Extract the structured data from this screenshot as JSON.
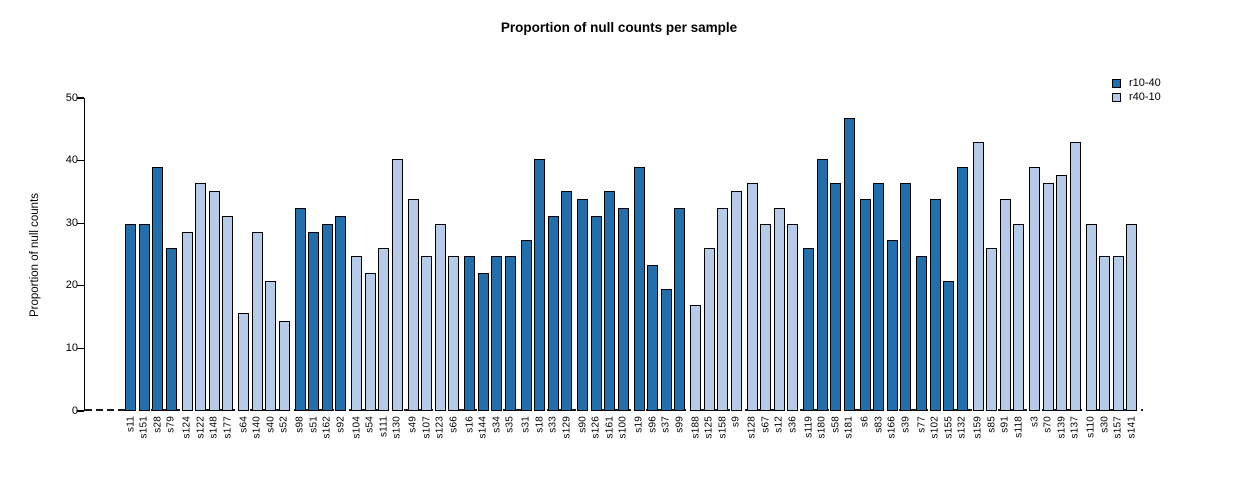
{
  "title": "Proportion of null counts per sample",
  "y_axis": {
    "label": "Proportion of null counts",
    "ticks": [
      0,
      10,
      20,
      30,
      40,
      50
    ]
  },
  "legend": {
    "items": [
      {
        "label": "r10-40",
        "color": "#216FAC"
      },
      {
        "label": "r40-10",
        "color": "#B5CBE8"
      }
    ]
  },
  "chart_data": {
    "type": "bar",
    "title": "Proportion of null counts per sample",
    "xlabel": "",
    "ylabel": "Proportion of null counts",
    "ylim": [
      0,
      50
    ],
    "yticks": [
      0,
      10,
      20,
      30,
      40,
      50
    ],
    "grid": false,
    "legend_position": "top-right",
    "zero_line": "dashed",
    "group_size": 4,
    "series": [
      {
        "name": "r10-40",
        "color": "#216FAC"
      },
      {
        "name": "r40-10",
        "color": "#B5CBE8"
      }
    ],
    "bars": [
      {
        "sample": "s11",
        "value": 29.9,
        "series": "r10-40"
      },
      {
        "sample": "s151",
        "value": 29.9,
        "series": "r10-40"
      },
      {
        "sample": "s28",
        "value": 39.0,
        "series": "r10-40"
      },
      {
        "sample": "s79",
        "value": 26.0,
        "series": "r10-40"
      },
      {
        "sample": "s124",
        "value": 28.6,
        "series": "r40-10"
      },
      {
        "sample": "s122",
        "value": 36.4,
        "series": "r40-10"
      },
      {
        "sample": "s148",
        "value": 35.1,
        "series": "r40-10"
      },
      {
        "sample": "s177",
        "value": 31.2,
        "series": "r40-10"
      },
      {
        "sample": "s64",
        "value": 15.6,
        "series": "r40-10"
      },
      {
        "sample": "s140",
        "value": 28.6,
        "series": "r40-10"
      },
      {
        "sample": "s40",
        "value": 20.8,
        "series": "r40-10"
      },
      {
        "sample": "s52",
        "value": 14.3,
        "series": "r40-10"
      },
      {
        "sample": "s98",
        "value": 32.5,
        "series": "r10-40"
      },
      {
        "sample": "s51",
        "value": 28.6,
        "series": "r10-40"
      },
      {
        "sample": "s162",
        "value": 29.9,
        "series": "r10-40"
      },
      {
        "sample": "s92",
        "value": 31.2,
        "series": "r10-40"
      },
      {
        "sample": "s104",
        "value": 24.7,
        "series": "r40-10"
      },
      {
        "sample": "s54",
        "value": 22.1,
        "series": "r40-10"
      },
      {
        "sample": "s111",
        "value": 26.0,
        "series": "r40-10"
      },
      {
        "sample": "s130",
        "value": 40.3,
        "series": "r40-10"
      },
      {
        "sample": "s49",
        "value": 33.8,
        "series": "r40-10"
      },
      {
        "sample": "s107",
        "value": 24.7,
        "series": "r40-10"
      },
      {
        "sample": "s123",
        "value": 29.9,
        "series": "r40-10"
      },
      {
        "sample": "s66",
        "value": 24.7,
        "series": "r40-10"
      },
      {
        "sample": "s16",
        "value": 24.7,
        "series": "r10-40"
      },
      {
        "sample": "s144",
        "value": 22.1,
        "series": "r10-40"
      },
      {
        "sample": "s34",
        "value": 24.7,
        "series": "r10-40"
      },
      {
        "sample": "s35",
        "value": 24.7,
        "series": "r10-40"
      },
      {
        "sample": "s31",
        "value": 27.3,
        "series": "r10-40"
      },
      {
        "sample": "s18",
        "value": 40.3,
        "series": "r10-40"
      },
      {
        "sample": "s33",
        "value": 31.2,
        "series": "r10-40"
      },
      {
        "sample": "s129",
        "value": 35.1,
        "series": "r10-40"
      },
      {
        "sample": "s90",
        "value": 33.8,
        "series": "r10-40"
      },
      {
        "sample": "s126",
        "value": 31.2,
        "series": "r10-40"
      },
      {
        "sample": "s161",
        "value": 35.1,
        "series": "r10-40"
      },
      {
        "sample": "s100",
        "value": 32.5,
        "series": "r10-40"
      },
      {
        "sample": "s19",
        "value": 39.0,
        "series": "r10-40"
      },
      {
        "sample": "s96",
        "value": 23.4,
        "series": "r10-40"
      },
      {
        "sample": "s37",
        "value": 19.5,
        "series": "r10-40"
      },
      {
        "sample": "s99",
        "value": 32.5,
        "series": "r10-40"
      },
      {
        "sample": "s188",
        "value": 16.9,
        "series": "r40-10"
      },
      {
        "sample": "s125",
        "value": 26.0,
        "series": "r40-10"
      },
      {
        "sample": "s158",
        "value": 32.5,
        "series": "r40-10"
      },
      {
        "sample": "s9",
        "value": 35.1,
        "series": "r40-10"
      },
      {
        "sample": "s128",
        "value": 36.4,
        "series": "r40-10"
      },
      {
        "sample": "s67",
        "value": 29.9,
        "series": "r40-10"
      },
      {
        "sample": "s12",
        "value": 32.5,
        "series": "r40-10"
      },
      {
        "sample": "s36",
        "value": 29.9,
        "series": "r40-10"
      },
      {
        "sample": "s119",
        "value": 26.0,
        "series": "r10-40"
      },
      {
        "sample": "s180",
        "value": 40.3,
        "series": "r10-40"
      },
      {
        "sample": "s58",
        "value": 36.4,
        "series": "r10-40"
      },
      {
        "sample": "s181",
        "value": 46.8,
        "series": "r10-40"
      },
      {
        "sample": "s6",
        "value": 33.8,
        "series": "r10-40"
      },
      {
        "sample": "s83",
        "value": 36.4,
        "series": "r10-40"
      },
      {
        "sample": "s166",
        "value": 27.3,
        "series": "r10-40"
      },
      {
        "sample": "s39",
        "value": 36.4,
        "series": "r10-40"
      },
      {
        "sample": "s77",
        "value": 24.7,
        "series": "r10-40"
      },
      {
        "sample": "s102",
        "value": 33.8,
        "series": "r10-40"
      },
      {
        "sample": "s155",
        "value": 20.8,
        "series": "r10-40"
      },
      {
        "sample": "s132",
        "value": 39.0,
        "series": "r10-40"
      },
      {
        "sample": "s159",
        "value": 42.9,
        "series": "r40-10"
      },
      {
        "sample": "s85",
        "value": 26.0,
        "series": "r40-10"
      },
      {
        "sample": "s91",
        "value": 33.8,
        "series": "r40-10"
      },
      {
        "sample": "s118",
        "value": 29.9,
        "series": "r40-10"
      },
      {
        "sample": "s3",
        "value": 39.0,
        "series": "r40-10"
      },
      {
        "sample": "s70",
        "value": 36.4,
        "series": "r40-10"
      },
      {
        "sample": "s139",
        "value": 37.7,
        "series": "r40-10"
      },
      {
        "sample": "s137",
        "value": 42.9,
        "series": "r40-10"
      },
      {
        "sample": "s110",
        "value": 29.9,
        "series": "r40-10"
      },
      {
        "sample": "s30",
        "value": 24.7,
        "series": "r40-10"
      },
      {
        "sample": "s157",
        "value": 24.7,
        "series": "r40-10"
      },
      {
        "sample": "s141",
        "value": 29.9,
        "series": "r40-10"
      }
    ]
  }
}
